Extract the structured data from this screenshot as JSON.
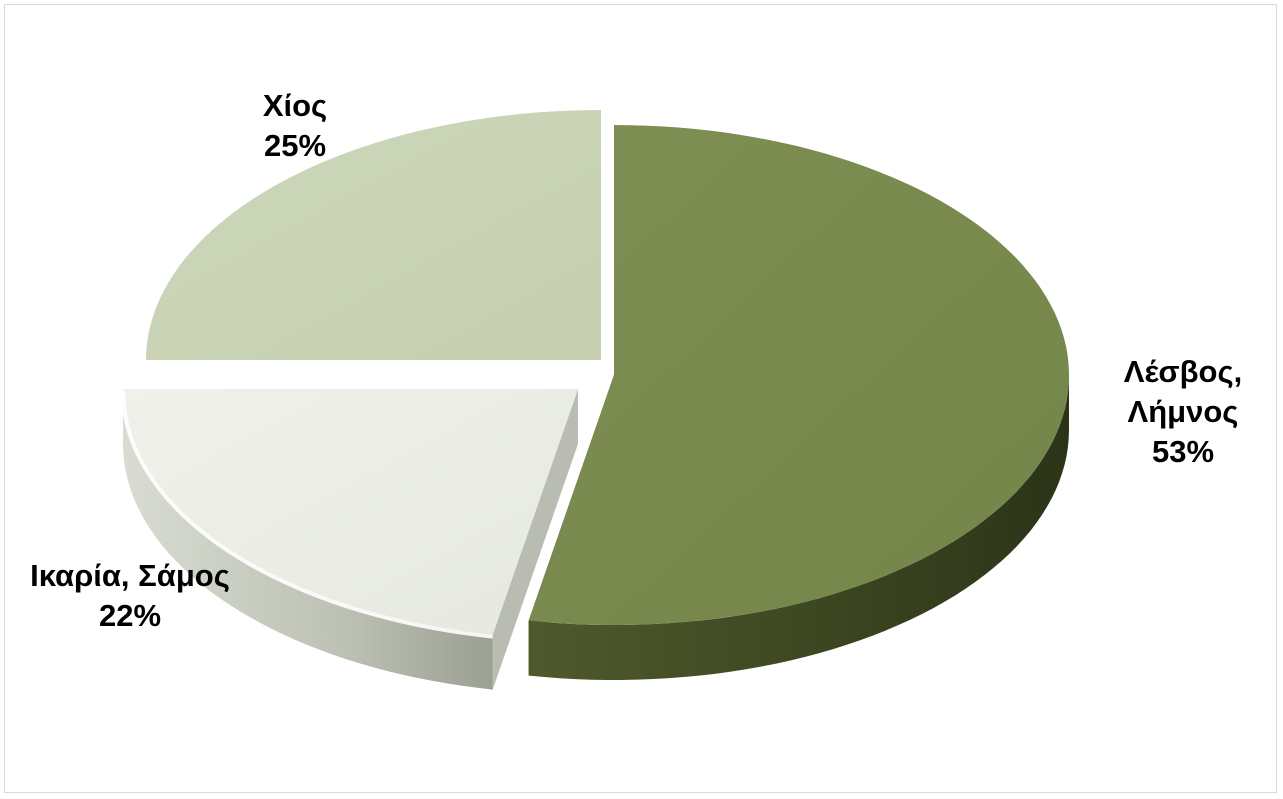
{
  "chart_data": {
    "type": "pie",
    "title": "",
    "slices": [
      {
        "label_lines": [
          "Λέσβος,",
          "Λήμνος"
        ],
        "percent_label": "53%",
        "value": 53,
        "color": "#7a8a4e"
      },
      {
        "label_lines": [
          "Ικαρία, Σάμος"
        ],
        "percent_label": "22%",
        "value": 22,
        "color": "#eceee6"
      },
      {
        "label_lines": [
          "Χίος"
        ],
        "percent_label": "25%",
        "value": 25,
        "color": "#c9d3b5"
      }
    ],
    "legend": "none",
    "style": "3d exploded"
  }
}
